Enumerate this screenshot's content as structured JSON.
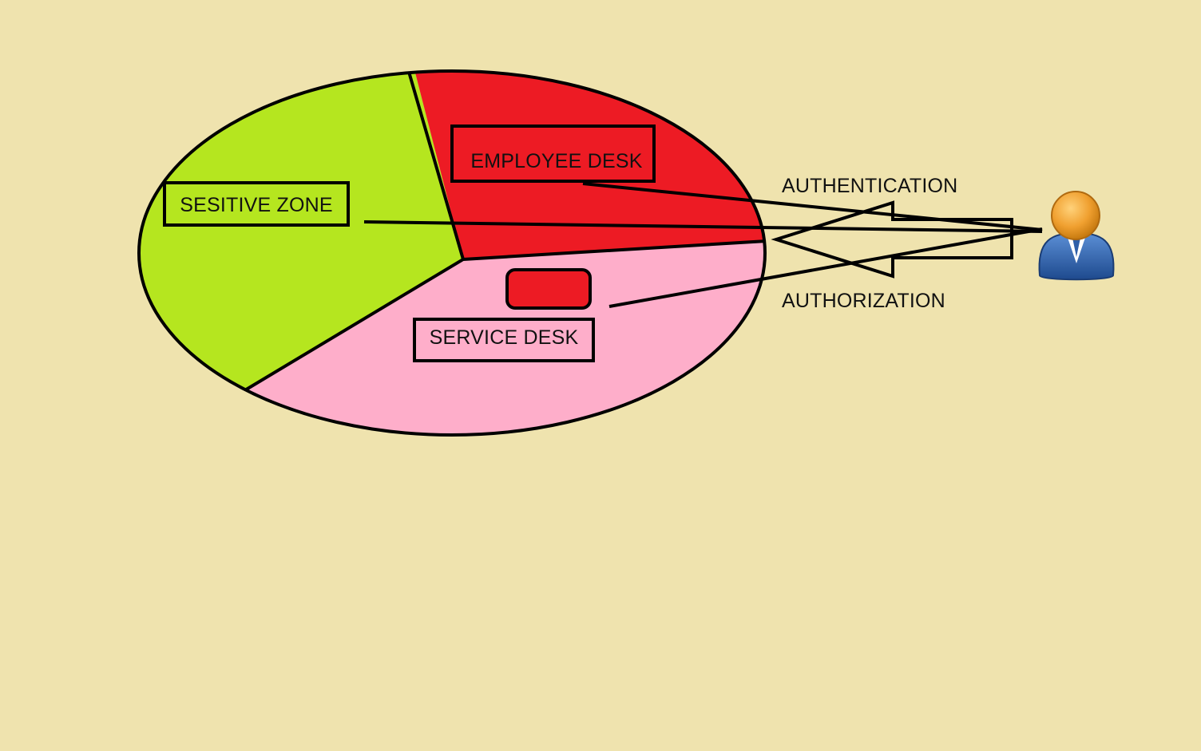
{
  "colors": {
    "background": "#EFE3AE",
    "sensitive_zone": "#B5E61F",
    "employee_desk": "#ED1B24",
    "service_desk": "#FEAECA",
    "outline": "#000000",
    "user_head": "#F0A030",
    "user_body": "#2E5FA8"
  },
  "zones": {
    "sensitive": {
      "label": "SESITIVE ZONE"
    },
    "employee": {
      "label": "EMPLOYEE DESK"
    },
    "service": {
      "label": "SERVICE DESK"
    }
  },
  "flows": {
    "authentication": {
      "label": "AUTHENTICATION"
    },
    "authorization": {
      "label": "AUTHORIZATION"
    }
  },
  "user": {
    "icon": "user-icon"
  }
}
